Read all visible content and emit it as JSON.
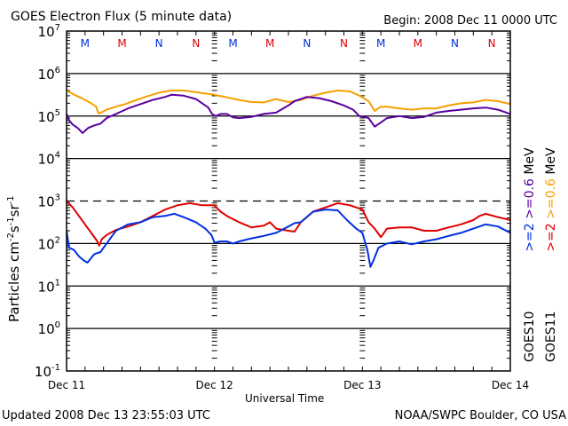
{
  "header": {
    "title": "GOES Electron Flux (5 minute data)",
    "begin": "Begin: 2008 Dec 11 0000 UTC"
  },
  "footer": {
    "updated": "Updated 2008 Dec 13 23:55:03 UTC",
    "credit": "NOAA/SWPC Boulder, CO USA"
  },
  "chart_data": {
    "type": "line",
    "title": "GOES Electron Flux (5 minute data)",
    "xlabel": "Universal Time",
    "ylabel": "Particles cm-2 s-1 sr-1",
    "y_scale": "log",
    "x_units": "hours since 2008 Dec 11 00:00 UTC",
    "y_units": "log10(particles cm-2 s-1 sr-1)",
    "xlim": [
      0,
      72
    ],
    "ylim_log10": [
      -1,
      7
    ],
    "x_ticks": [
      {
        "hour": 0,
        "label": "Dec 11"
      },
      {
        "hour": 24,
        "label": "Dec 12"
      },
      {
        "hour": 48,
        "label": "Dec 13"
      },
      {
        "hour": 72,
        "label": "Dec 14"
      }
    ],
    "y_ticks": [
      {
        "exp": 7,
        "base": "10",
        "sup": "7"
      },
      {
        "exp": 6,
        "base": "10",
        "sup": "6"
      },
      {
        "exp": 5,
        "base": "10",
        "sup": "5"
      },
      {
        "exp": 4,
        "base": "10",
        "sup": "4"
      },
      {
        "exp": 3,
        "base": "10",
        "sup": "3"
      },
      {
        "exp": 2,
        "base": "10",
        "sup": "2"
      },
      {
        "exp": 1,
        "base": "10",
        "sup": "1"
      },
      {
        "exp": 0,
        "base": "10",
        "sup": "0"
      },
      {
        "exp": -1,
        "base": "10",
        "sup": "-1"
      }
    ],
    "grid": "horizontal lines at each decade; dashed threshold line at 10^3",
    "threshold_log10": 3,
    "local_time_markers": [
      {
        "hour": 6,
        "label": "M",
        "satellite": "GOES10"
      },
      {
        "hour": 12,
        "label": "M",
        "satellite": "GOES11"
      },
      {
        "hour": 18,
        "label": "N",
        "satellite": "GOES10"
      },
      {
        "hour": 24,
        "label": "N",
        "satellite": "GOES11"
      },
      {
        "hour": 30,
        "label": "M",
        "satellite": "GOES10"
      },
      {
        "hour": 36,
        "label": "M",
        "satellite": "GOES11"
      },
      {
        "hour": 42,
        "label": "N",
        "satellite": "GOES10"
      },
      {
        "hour": 48,
        "label": "N",
        "satellite": "GOES11"
      },
      {
        "hour": 54,
        "label": "M",
        "satellite": "GOES10"
      },
      {
        "hour": 60,
        "label": "M",
        "satellite": "GOES11"
      },
      {
        "hour": 66,
        "label": "N",
        "satellite": "GOES10"
      },
      {
        "hour": 72,
        "label": "N",
        "satellite": "GOES11"
      }
    ],
    "legend_placement": "right, vertical",
    "legend": {
      "goes10_label": "GOES10",
      "goes11_label": "GOES11",
      "goes10_e2": ">=2",
      "goes10_e06": ">=0.6",
      "goes11_e2": ">=2",
      "goes11_e06": ">=0.6",
      "unit": "MeV"
    },
    "series": [
      {
        "name": "GOES11 >=0.6 MeV",
        "color": "#f5a000",
        "x": [
          0,
          1,
          2,
          3,
          4,
          4.8,
          5.2,
          5.6,
          6.5,
          8,
          9.5,
          11,
          13,
          15,
          17,
          19,
          21,
          23,
          24,
          26,
          28,
          30,
          32,
          34,
          36,
          38,
          40,
          42,
          44,
          46,
          47.5,
          49,
          50,
          51,
          52,
          54,
          56,
          58,
          60,
          62,
          64,
          66,
          68,
          70,
          72
        ],
        "y": [
          5.6,
          5.52,
          5.45,
          5.38,
          5.3,
          5.22,
          5.06,
          5.08,
          5.15,
          5.22,
          5.28,
          5.36,
          5.46,
          5.55,
          5.6,
          5.6,
          5.56,
          5.52,
          5.5,
          5.44,
          5.38,
          5.33,
          5.32,
          5.4,
          5.33,
          5.38,
          5.48,
          5.55,
          5.6,
          5.58,
          5.48,
          5.35,
          5.12,
          5.22,
          5.22,
          5.18,
          5.15,
          5.18,
          5.18,
          5.25,
          5.3,
          5.32,
          5.38,
          5.35,
          5.28
        ]
      },
      {
        "name": "GOES10 >=0.6 MeV",
        "color": "#5a00a0",
        "x": [
          0,
          0.4,
          1,
          1.8,
          2.6,
          3.5,
          4.5,
          5.5,
          6.5,
          8,
          10,
          12,
          14,
          16,
          17,
          19,
          21,
          22,
          23,
          23.6,
          24.2,
          25,
          26,
          27,
          28,
          30,
          32,
          34,
          36,
          37,
          39,
          41,
          43,
          45,
          46.5,
          47.5,
          48.3,
          49,
          50,
          51,
          52,
          54,
          56,
          58,
          60,
          62,
          64,
          66,
          68,
          70,
          72
        ],
        "y": [
          5.05,
          4.9,
          4.8,
          4.72,
          4.6,
          4.72,
          4.78,
          4.82,
          4.95,
          5.05,
          5.18,
          5.28,
          5.38,
          5.45,
          5.5,
          5.48,
          5.4,
          5.3,
          5.2,
          5.05,
          5.0,
          5.05,
          5.05,
          4.97,
          4.95,
          4.98,
          5.05,
          5.08,
          5.25,
          5.35,
          5.45,
          5.42,
          5.35,
          5.25,
          5.15,
          5.0,
          4.98,
          4.95,
          4.75,
          4.85,
          4.95,
          5.0,
          4.95,
          4.98,
          5.08,
          5.12,
          5.15,
          5.18,
          5.2,
          5.15,
          5.05
        ]
      },
      {
        "name": "GOES11 >=2 MeV",
        "color": "#e00000",
        "x": [
          0,
          1,
          2,
          3,
          4,
          5,
          5.3,
          5.7,
          6.5,
          8,
          10,
          12,
          14,
          16,
          18,
          20,
          22,
          24,
          25,
          26,
          28,
          30,
          32,
          33,
          34,
          36,
          37,
          38,
          40,
          42,
          44,
          46,
          47,
          48,
          49,
          50,
          51,
          52,
          54,
          56,
          58,
          60,
          62,
          64,
          66,
          67,
          68,
          70,
          72
        ],
        "y": [
          3.0,
          2.85,
          2.65,
          2.45,
          2.25,
          2.05,
          1.95,
          2.1,
          2.2,
          2.32,
          2.4,
          2.5,
          2.65,
          2.8,
          2.9,
          2.95,
          2.9,
          2.9,
          2.75,
          2.65,
          2.5,
          2.38,
          2.42,
          2.5,
          2.35,
          2.3,
          2.28,
          2.5,
          2.75,
          2.85,
          2.95,
          2.9,
          2.85,
          2.8,
          2.5,
          2.35,
          2.15,
          2.35,
          2.38,
          2.38,
          2.3,
          2.3,
          2.38,
          2.45,
          2.55,
          2.65,
          2.7,
          2.62,
          2.55
        ]
      },
      {
        "name": "GOES10 >=2 MeV",
        "color": "#0030e0",
        "x": [
          0,
          0.4,
          1.2,
          2,
          2.8,
          3.4,
          4.5,
          5.5,
          6.5,
          8,
          10,
          12,
          14,
          16,
          17.5,
          19,
          21,
          22.5,
          23.5,
          24,
          25,
          26,
          27,
          28,
          30,
          32,
          34,
          36,
          37,
          38,
          40,
          42,
          44,
          45.5,
          47,
          48,
          48.8,
          49.3,
          49.8,
          50.6,
          52,
          54,
          56,
          58,
          60,
          62,
          64,
          66,
          68,
          70,
          72
        ],
        "y": [
          2.3,
          1.9,
          1.85,
          1.7,
          1.6,
          1.55,
          1.75,
          1.8,
          2.0,
          2.3,
          2.45,
          2.5,
          2.62,
          2.65,
          2.7,
          2.62,
          2.5,
          2.35,
          2.2,
          2.02,
          2.05,
          2.05,
          2.0,
          2.05,
          2.12,
          2.18,
          2.25,
          2.4,
          2.48,
          2.5,
          2.75,
          2.8,
          2.78,
          2.55,
          2.35,
          2.25,
          1.85,
          1.45,
          1.6,
          1.9,
          2.0,
          2.05,
          1.98,
          2.05,
          2.1,
          2.18,
          2.25,
          2.35,
          2.45,
          2.4,
          2.25
        ]
      }
    ]
  }
}
